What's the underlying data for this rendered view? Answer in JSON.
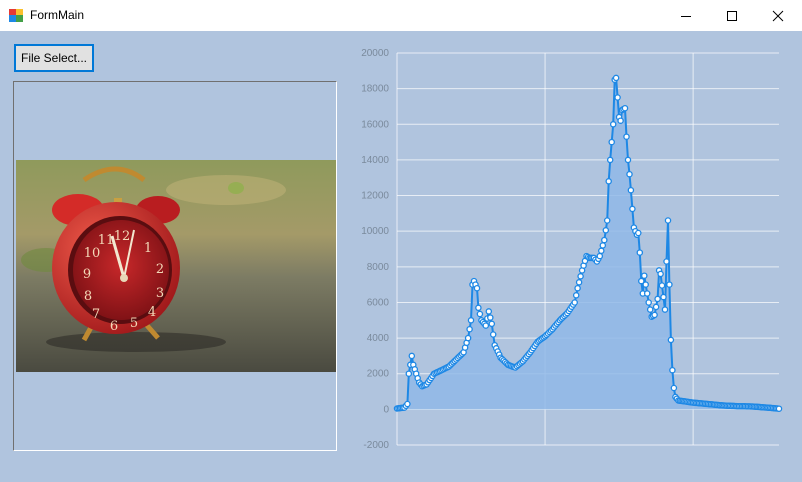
{
  "window": {
    "title": "FormMain"
  },
  "controls": {
    "file_select_label": "File Select..."
  },
  "colors": {
    "client_bg": "#b0c4de",
    "series": "#1e88e5",
    "fill": "#90b8e8"
  },
  "chart_data": {
    "type": "area",
    "title": "",
    "xlabel": "",
    "ylabel": "",
    "xlim": [
      0,
      258
    ],
    "ylim": [
      -2000,
      20000
    ],
    "xticks": [
      0,
      100,
      200
    ],
    "yticks": [
      -2000,
      0,
      2000,
      4000,
      6000,
      8000,
      10000,
      12000,
      14000,
      16000,
      18000,
      20000
    ],
    "grid": true,
    "legend": "none",
    "anchors": [
      [
        0,
        50
      ],
      [
        5,
        100
      ],
      [
        7,
        300
      ],
      [
        8,
        2000
      ],
      [
        10,
        3000
      ],
      [
        11,
        2500
      ],
      [
        13,
        2000
      ],
      [
        15,
        1500
      ],
      [
        17,
        1300
      ],
      [
        20,
        1400
      ],
      [
        25,
        2000
      ],
      [
        30,
        2200
      ],
      [
        35,
        2400
      ],
      [
        40,
        2800
      ],
      [
        45,
        3200
      ],
      [
        48,
        4000
      ],
      [
        50,
        5000
      ],
      [
        51,
        7000
      ],
      [
        52,
        7200
      ],
      [
        54,
        6800
      ],
      [
        55,
        5700
      ],
      [
        57,
        5000
      ],
      [
        60,
        4700
      ],
      [
        62,
        5500
      ],
      [
        64,
        4800
      ],
      [
        66,
        3600
      ],
      [
        70,
        2900
      ],
      [
        75,
        2500
      ],
      [
        78,
        2400
      ],
      [
        80,
        2350
      ],
      [
        85,
        2700
      ],
      [
        90,
        3200
      ],
      [
        95,
        3800
      ],
      [
        100,
        4100
      ],
      [
        105,
        4500
      ],
      [
        110,
        5000
      ],
      [
        115,
        5400
      ],
      [
        120,
        6000
      ],
      [
        122,
        6800
      ],
      [
        125,
        7800
      ],
      [
        128,
        8600
      ],
      [
        130,
        8500
      ],
      [
        133,
        8500
      ],
      [
        135,
        8300
      ],
      [
        137,
        8600
      ],
      [
        140,
        9500
      ],
      [
        142,
        10600
      ],
      [
        143,
        12800
      ],
      [
        144,
        14000
      ],
      [
        145,
        15000
      ],
      [
        146,
        16000
      ],
      [
        147,
        18500
      ],
      [
        148,
        18600
      ],
      [
        149,
        17500
      ],
      [
        150,
        16400
      ],
      [
        151,
        16200
      ],
      [
        152,
        16800
      ],
      [
        154,
        16900
      ],
      [
        155,
        15300
      ],
      [
        156,
        14000
      ],
      [
        157,
        13200
      ],
      [
        158,
        12300
      ],
      [
        160,
        10200
      ],
      [
        162,
        9800
      ],
      [
        163,
        9900
      ],
      [
        164,
        8800
      ],
      [
        165,
        7200
      ],
      [
        166,
        6500
      ],
      [
        167,
        7500
      ],
      [
        170,
        6000
      ],
      [
        172,
        5200
      ],
      [
        174,
        5300
      ],
      [
        176,
        6200
      ],
      [
        177,
        7800
      ],
      [
        178,
        7600
      ],
      [
        180,
        6300
      ],
      [
        181,
        5600
      ],
      [
        182,
        8300
      ],
      [
        183,
        10600
      ],
      [
        184,
        7000
      ],
      [
        185,
        3900
      ],
      [
        186,
        2200
      ],
      [
        187,
        1200
      ],
      [
        188,
        700
      ],
      [
        190,
        500
      ],
      [
        200,
        380
      ],
      [
        210,
        300
      ],
      [
        220,
        220
      ],
      [
        230,
        180
      ],
      [
        240,
        160
      ],
      [
        250,
        100
      ],
      [
        258,
        40
      ]
    ]
  }
}
